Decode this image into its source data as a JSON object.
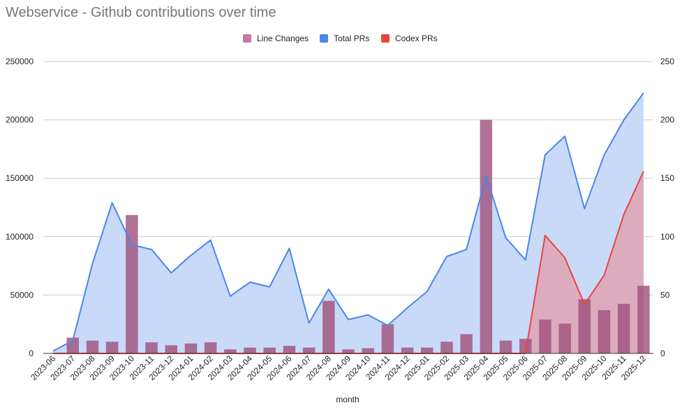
{
  "chart_data": {
    "type": "bar+line+area",
    "title": "Webservice - Github contributions over time",
    "xlabel": "month",
    "categories": [
      "2023-06",
      "2023-07",
      "2023-08",
      "2023-09",
      "2023-10",
      "2023-11",
      "2023-12",
      "2024-01",
      "2024-02",
      "2024-03",
      "2024-04",
      "2024-05",
      "2024-06",
      "2024-07",
      "2024-08",
      "2024-09",
      "2024-10",
      "2024-11",
      "2024-12",
      "2025-01",
      "2025-02",
      "2025-03",
      "2025-04",
      "2025-05",
      "2025-06",
      "2025-07",
      "2025-08",
      "2025-09",
      "2025-10",
      "2025-11",
      "2025-12"
    ],
    "y_left": {
      "min": 0,
      "max": 250000,
      "ticks": [
        "0",
        "50000",
        "100000",
        "150000",
        "200000",
        "250000"
      ]
    },
    "y_right": {
      "min": 0,
      "max": 250,
      "ticks": [
        "0",
        "50",
        "100",
        "150",
        "200",
        "250"
      ]
    },
    "grid": true,
    "legend_position": "top",
    "series": [
      {
        "name": "Line Changes",
        "kind": "bar",
        "axis": "left",
        "color": "#a0527e",
        "legend_color": "#c27ba0",
        "values": [
          0,
          13500,
          11000,
          10000,
          118500,
          9500,
          7000,
          8500,
          9500,
          3500,
          5000,
          5000,
          6500,
          5000,
          45000,
          3500,
          4500,
          25000,
          5000,
          5000,
          10000,
          16500,
          200000,
          11000,
          12500,
          29000,
          25500,
          46500,
          37000,
          42500,
          58000
        ]
      },
      {
        "name": "Total PRs",
        "kind": "area",
        "axis": "right",
        "color": "#4a86e8",
        "fill": "#c9daf8",
        "values": [
          2,
          11,
          77,
          129,
          93,
          89,
          69,
          84,
          97,
          49,
          61,
          57,
          90,
          26,
          55,
          29,
          33,
          24,
          39,
          53,
          83,
          89,
          152,
          99,
          80,
          170,
          186,
          124,
          170,
          200,
          223
        ]
      },
      {
        "name": "Codex PRs",
        "kind": "area",
        "axis": "right",
        "color": "#e8453c",
        "fill": "#dcabbe",
        "values": [
          0,
          0,
          0,
          0,
          0,
          0,
          0,
          0,
          0,
          0,
          0,
          0,
          0,
          0,
          0,
          0,
          0,
          0,
          0,
          0,
          0,
          0,
          0,
          0,
          0,
          101,
          82,
          42,
          67,
          119,
          156
        ]
      }
    ]
  }
}
